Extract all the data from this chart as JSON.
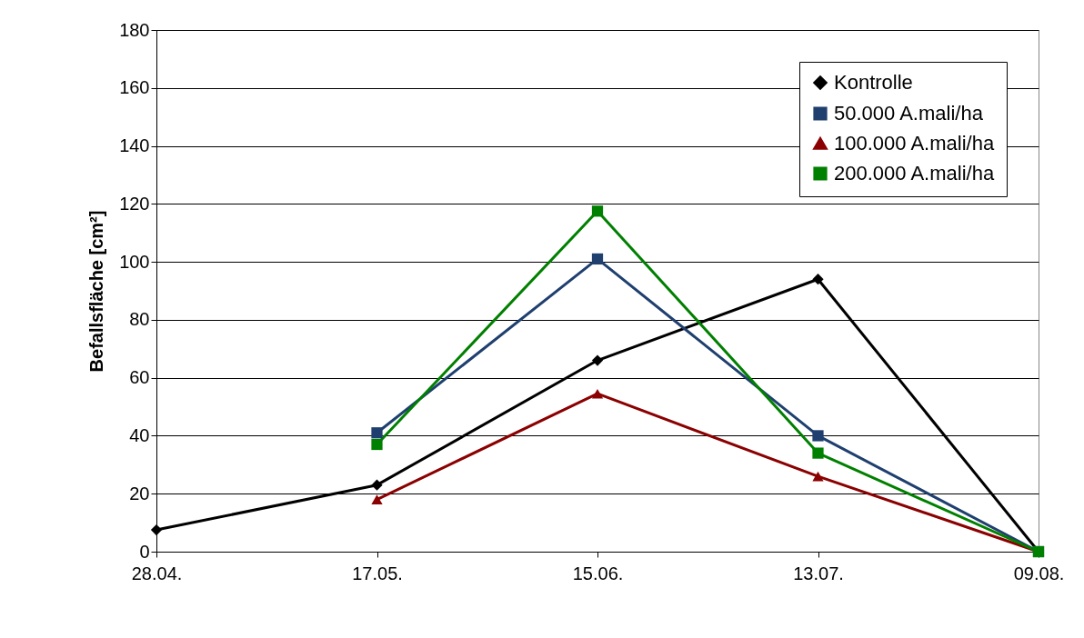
{
  "chart_data": {
    "type": "line",
    "ylabel": "Befallsfläche [cm²]",
    "categories": [
      "28.04.",
      "17.05.",
      "15.06.",
      "13.07.",
      "09.08."
    ],
    "series": [
      {
        "name": "Kontrolle",
        "color": "#000000",
        "marker": "diamond",
        "values": [
          7.5,
          23,
          66,
          94,
          0
        ]
      },
      {
        "name": "50.000 A.mali/ha",
        "color": "#1f3f6f",
        "marker": "square",
        "values": [
          null,
          41,
          101,
          40,
          0
        ]
      },
      {
        "name": "100.000 A.mali/ha",
        "color": "#8b0000",
        "marker": "triangle",
        "values": [
          null,
          18,
          54.5,
          26,
          0
        ]
      },
      {
        "name": "200.000 A.mali/ha",
        "color": "#008000",
        "marker": "square",
        "values": [
          null,
          37,
          117.5,
          34,
          0
        ]
      }
    ],
    "ylim": [
      0,
      180
    ],
    "yticks": [
      0,
      20,
      40,
      60,
      80,
      100,
      120,
      140,
      160,
      180
    ],
    "grid": "y",
    "legend": "top right"
  }
}
